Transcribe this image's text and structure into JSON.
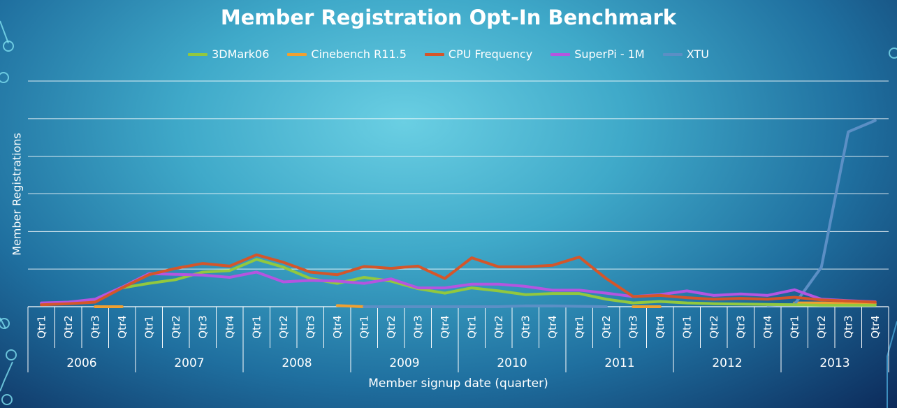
{
  "chart_data": {
    "type": "line",
    "title": "Member Registration Opt-In Benchmark",
    "xlabel": "Member signup date (quarter)",
    "ylabel": "Member Registrations",
    "legend_position": "top",
    "grid": true,
    "ylim": [
      0,
      6
    ],
    "years": [
      "2006",
      "2007",
      "2008",
      "2009",
      "2010",
      "2011",
      "2012",
      "2013"
    ],
    "quarters": [
      "Qtr1",
      "Qtr2",
      "Qtr3",
      "Qtr4"
    ],
    "series": [
      {
        "name": "3DMark06",
        "color": "#92c83e",
        "values": [
          0.08,
          0.12,
          0.17,
          0.5,
          0.62,
          0.72,
          0.92,
          0.96,
          1.26,
          1.05,
          0.75,
          0.62,
          0.78,
          0.68,
          0.48,
          0.36,
          0.5,
          0.42,
          0.32,
          0.35,
          0.35,
          0.2,
          0.1,
          0.14,
          0.1,
          0.08,
          0.07,
          0.06,
          0.05,
          0.04,
          0.04,
          0.04
        ]
      },
      {
        "name": "Cinebench R11.5",
        "color": "#f0a030",
        "values": [
          null,
          null,
          0.0,
          0.0,
          null,
          null,
          null,
          null,
          null,
          null,
          null,
          0.03,
          0.0,
          0.0,
          null,
          0.0,
          null,
          null,
          null,
          null,
          null,
          null,
          0.0,
          0.0,
          null,
          null,
          null,
          null,
          0.1,
          0.1,
          0.08,
          0.08
        ]
      },
      {
        "name": "CPU Frequency",
        "color": "#d4562a",
        "values": [
          0.05,
          0.08,
          0.12,
          0.5,
          0.85,
          1.02,
          1.15,
          1.08,
          1.38,
          1.18,
          0.92,
          0.85,
          1.07,
          1.02,
          1.08,
          0.75,
          1.3,
          1.06,
          1.06,
          1.1,
          1.32,
          0.75,
          0.27,
          0.3,
          0.24,
          0.2,
          0.22,
          0.2,
          0.25,
          0.18,
          0.15,
          0.12
        ]
      },
      {
        "name": "SuperPi - 1M",
        "color": "#b455e0",
        "values": [
          0.1,
          0.12,
          0.2,
          0.52,
          0.88,
          0.86,
          0.84,
          0.78,
          0.92,
          0.66,
          0.7,
          0.68,
          0.62,
          0.74,
          0.5,
          0.5,
          0.6,
          0.6,
          0.54,
          0.44,
          0.44,
          0.36,
          0.27,
          0.32,
          0.42,
          0.3,
          0.34,
          0.3,
          0.45,
          0.2,
          0.16,
          0.13
        ]
      },
      {
        "name": "XTU",
        "color": "#5b8fc5",
        "values": [
          null,
          null,
          null,
          null,
          null,
          null,
          null,
          null,
          null,
          null,
          null,
          null,
          0.0,
          0.0,
          0.0,
          0.0,
          0.0,
          0.0,
          0.02,
          0.02,
          0.01,
          0.0,
          null,
          null,
          null,
          null,
          null,
          0.04,
          0.06,
          1.05,
          4.65,
          4.95
        ]
      }
    ]
  }
}
